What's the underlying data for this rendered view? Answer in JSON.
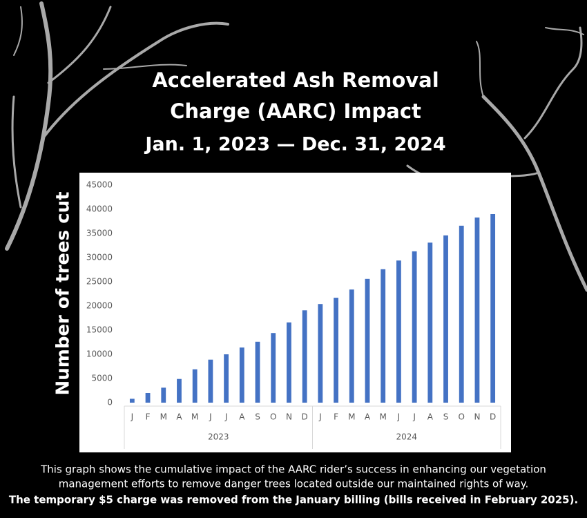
{
  "chart_data": {
    "type": "bar",
    "title": [
      "Accelerated Ash Removal",
      "Charge (AARC) Impact"
    ],
    "subtitle": "Jan. 1, 2023 — Dec. 31, 2024",
    "y_label": "Number of trees cut",
    "groups": [
      {
        "name": "2023",
        "categories": [
          "J",
          "F",
          "M",
          "A",
          "M",
          "J",
          "J",
          "A",
          "S",
          "O",
          "N",
          "D"
        ],
        "values": [
          800,
          2000,
          3100,
          4900,
          6900,
          8900,
          10000,
          11400,
          12600,
          14400,
          16600,
          19100
        ]
      },
      {
        "name": "2024",
        "categories": [
          "J",
          "F",
          "M",
          "A",
          "M",
          "J",
          "J",
          "A",
          "S",
          "O",
          "N",
          "D"
        ],
        "values": [
          20400,
          21700,
          23400,
          25600,
          27600,
          29400,
          31300,
          33100,
          34600,
          36600,
          38300,
          39000
        ]
      }
    ],
    "color": "#4472c4",
    "ylim": [
      0,
      45000
    ],
    "yticks": [
      0,
      5000,
      10000,
      15000,
      20000,
      25000,
      30000,
      35000,
      40000,
      45000
    ],
    "grid": false,
    "caption": [
      "This graph shows the cumulative impact of the AARC rider’s success in enhancing our vegetation",
      "management efforts to remove danger trees located outside our maintained rights of way."
    ],
    "note": "The temporary $5 charge was removed from the January billing (bills received in February 2025)."
  }
}
